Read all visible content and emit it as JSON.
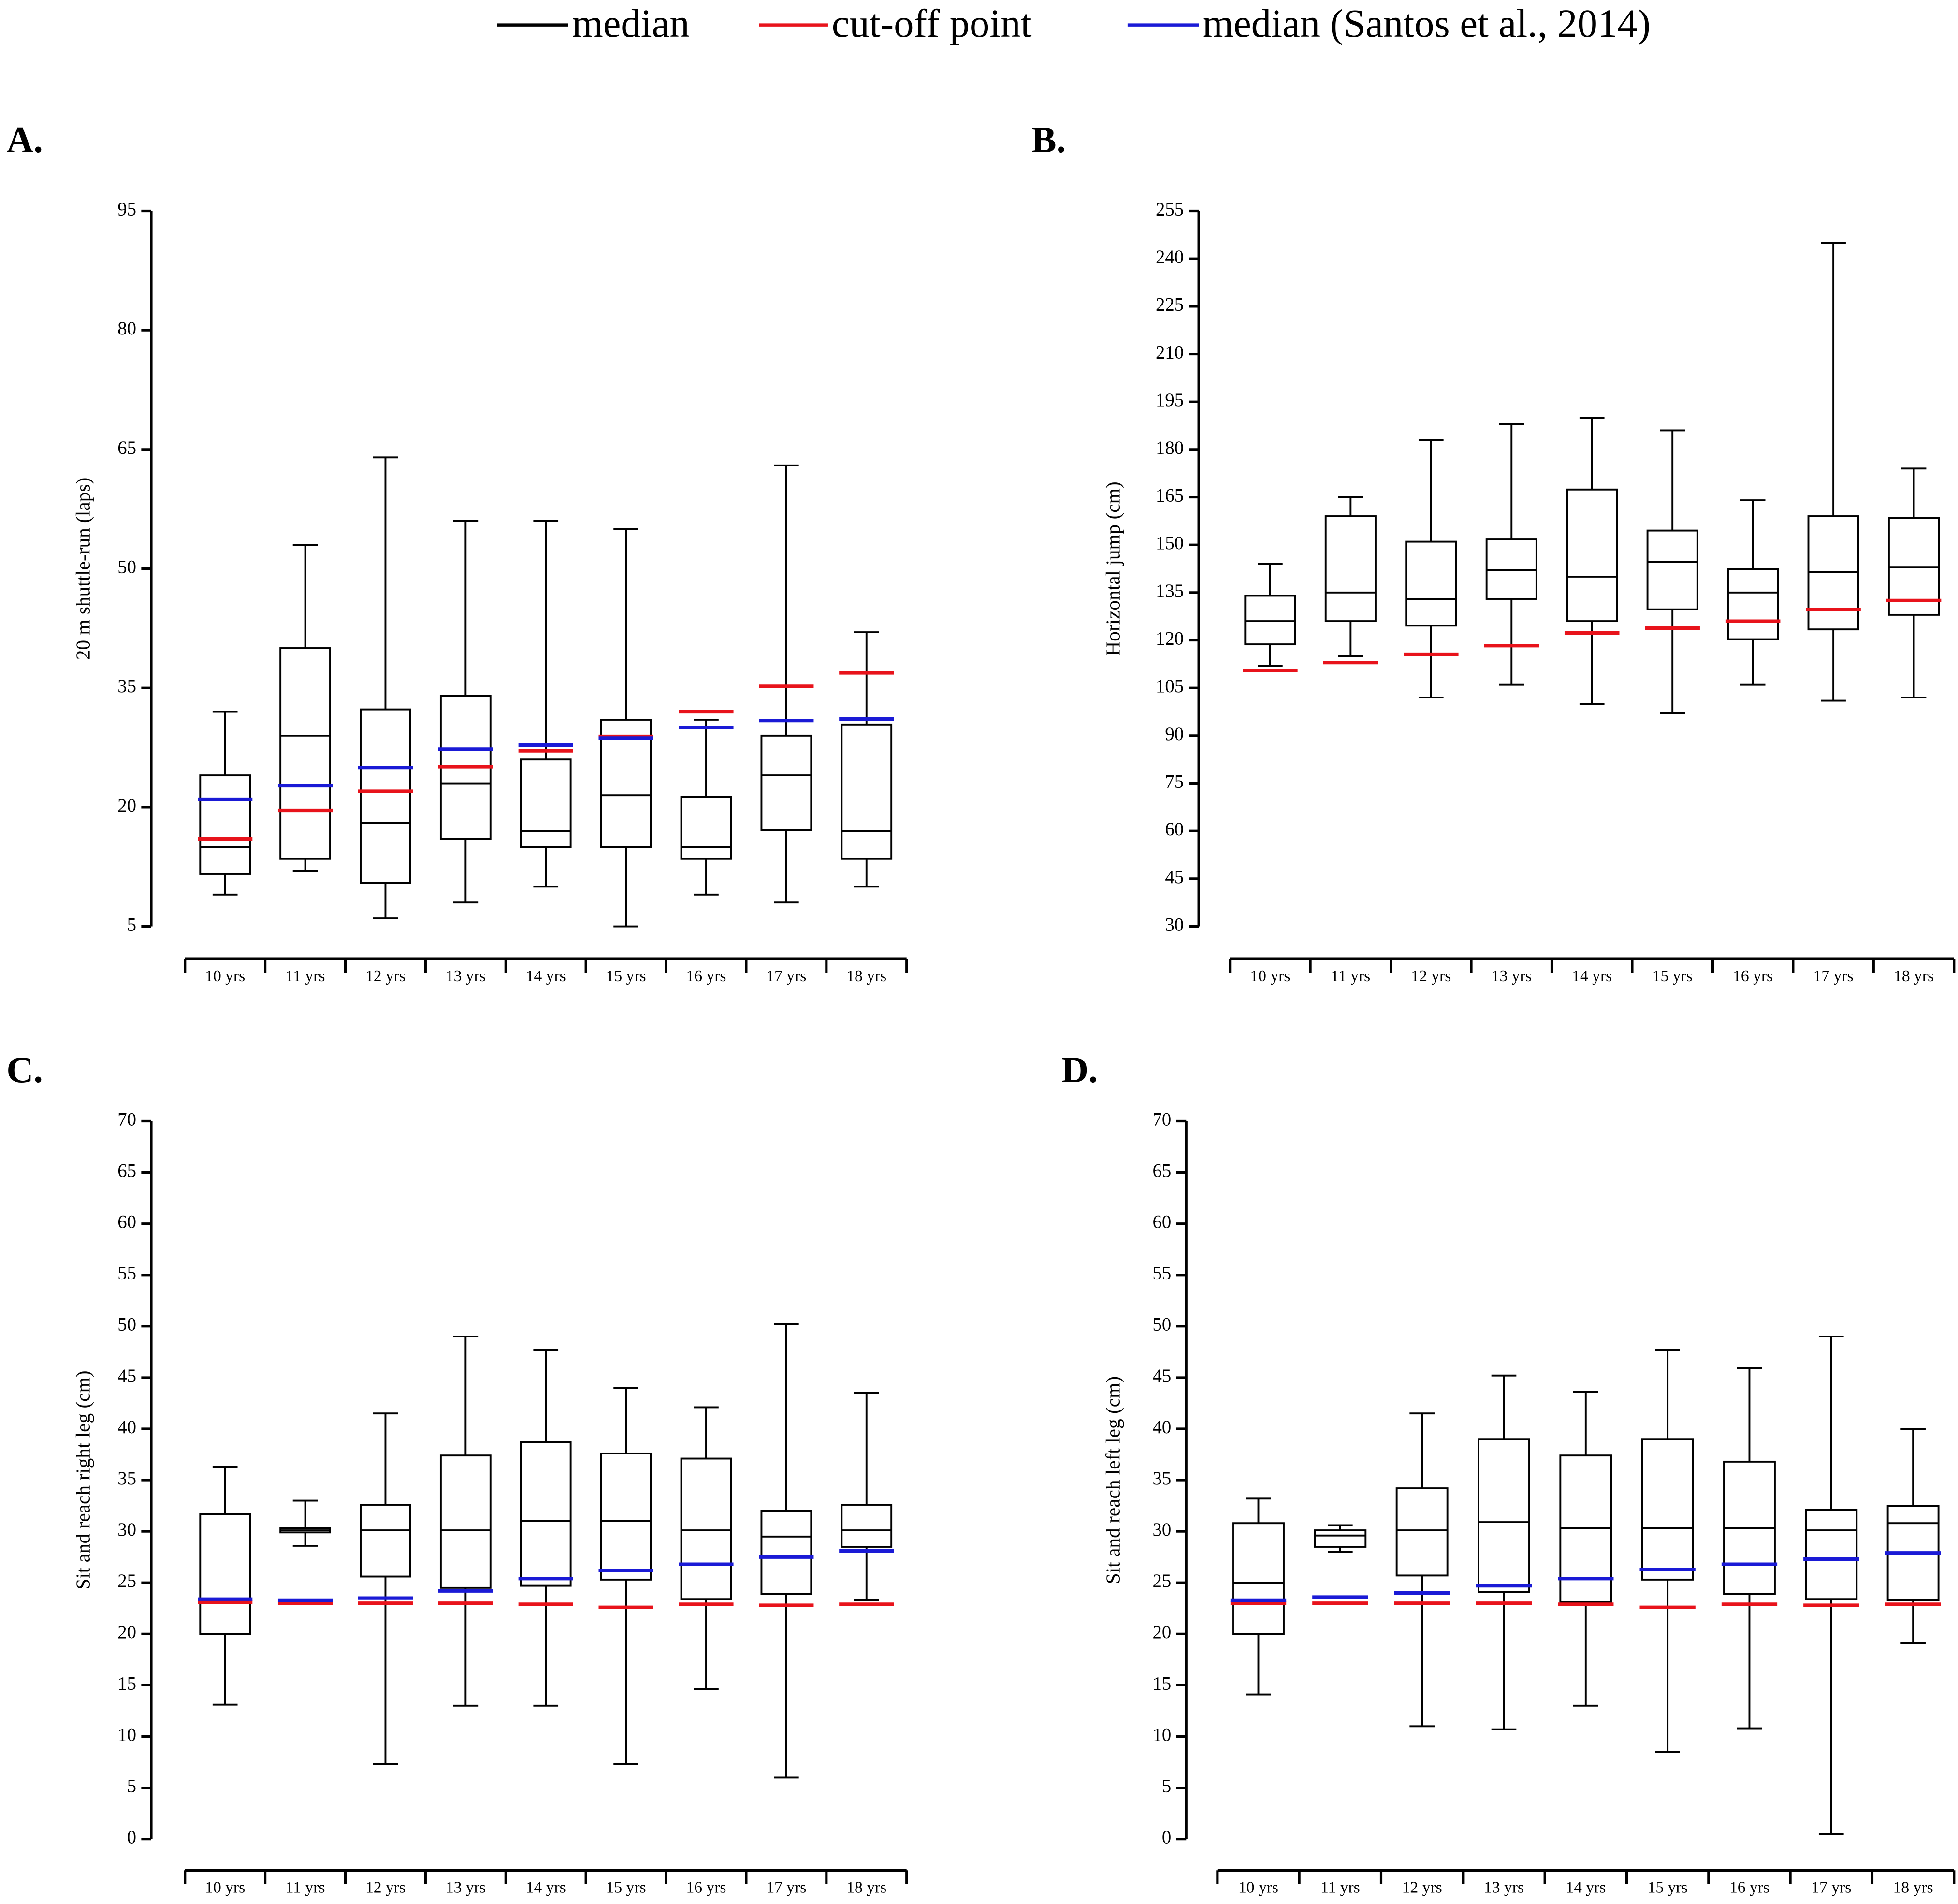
{
  "legend": [
    {
      "name": "median",
      "color": "#000000"
    },
    {
      "name": "cut-off point",
      "color": "#e8131b"
    },
    {
      "name": "median (Santos et al., 2014)",
      "color": "#1a1ad6"
    }
  ],
  "chart_data": [
    {
      "type": "box",
      "label": "A.",
      "y_label": "20 m shuttle-run (laps)",
      "categories": [
        "10 yrs",
        "11 yrs",
        "12 yrs",
        "13 yrs",
        "14 yrs",
        "15 yrs",
        "16 yrs",
        "17 yrs",
        "18 yrs"
      ],
      "ylim": [
        5,
        95
      ],
      "yticks": [
        5,
        20,
        35,
        50,
        65,
        80,
        95
      ],
      "boxes": {
        "min": [
          9,
          12,
          6,
          8,
          10,
          5,
          9,
          8,
          10
        ],
        "q1": [
          11.6,
          13.5,
          10.5,
          16,
          15,
          15,
          13.5,
          17.1,
          13.5
        ],
        "median": [
          15,
          29,
          18,
          23,
          17,
          21.5,
          15,
          24,
          17
        ],
        "q3": [
          24,
          40,
          32.3,
          34,
          26,
          31,
          21.3,
          29,
          30.4
        ],
        "max": [
          32,
          53,
          64,
          56,
          56,
          55,
          31,
          63,
          42
        ]
      },
      "cutoff": [
        16,
        19.6,
        22,
        25.1,
        27.1,
        28.9,
        32,
        35.2,
        36.9
      ],
      "reference_median": [
        21,
        22.7,
        25,
        27.3,
        27.8,
        28.7,
        30,
        30.9,
        31.1
      ]
    },
    {
      "type": "box",
      "label": "B.",
      "y_label": "Horizontal jump (cm)",
      "categories": [
        "10 yrs",
        "11 yrs",
        "12 yrs",
        "13 yrs",
        "14 yrs",
        "15 yrs",
        "16 yrs",
        "17 yrs",
        "18 yrs"
      ],
      "ylim": [
        30,
        255
      ],
      "yticks": [
        30,
        45,
        60,
        75,
        90,
        105,
        120,
        135,
        150,
        165,
        180,
        195,
        210,
        225,
        240,
        255
      ],
      "boxes": {
        "min": [
          112,
          115,
          102,
          106,
          100,
          97,
          106,
          101,
          102
        ],
        "q1": [
          118.7,
          126,
          124.6,
          133,
          126,
          129.7,
          120.3,
          123.4,
          128
        ],
        "median": [
          126,
          135,
          133,
          142,
          140,
          144.6,
          135,
          141.5,
          143
        ],
        "q3": [
          134,
          159,
          151,
          151.7,
          167.4,
          154.5,
          142.3,
          159,
          158.4
        ],
        "max": [
          144,
          165,
          183,
          188,
          190,
          186,
          164,
          245,
          174
        ]
      },
      "cutoff": [
        110.5,
        113,
        115.6,
        118.3,
        122.3,
        123.8,
        126,
        129.7,
        132.5
      ]
    },
    {
      "type": "box",
      "label": "C.",
      "y_label": "Sit and reach right leg (cm)",
      "categories": [
        "10 yrs",
        "11 yrs",
        "12 yrs",
        "13 yrs",
        "14 yrs",
        "15 yrs",
        "16 yrs",
        "17 yrs",
        "18 yrs"
      ],
      "ylim": [
        0,
        70
      ],
      "yticks": [
        0,
        5,
        10,
        15,
        20,
        25,
        30,
        35,
        40,
        45,
        50,
        55,
        60,
        65,
        70
      ],
      "boxes": {
        "min": [
          13.1,
          28.6,
          7.3,
          13,
          13,
          7.3,
          14.6,
          6,
          23.3
        ],
        "q1": [
          20,
          29.9,
          25.6,
          24.5,
          24.7,
          25.3,
          23.4,
          23.9,
          28.5
        ],
        "median": [
          23.3,
          30.1,
          30.1,
          30.1,
          31,
          31,
          30.1,
          29.5,
          30.1
        ],
        "q3": [
          31.7,
          30.3,
          32.6,
          37.4,
          38.7,
          37.6,
          37.1,
          32,
          32.6
        ],
        "max": [
          36.3,
          33,
          41.5,
          49,
          47.7,
          44,
          42.1,
          50.2,
          43.5
        ]
      },
      "cutoff": [
        23.1,
        23,
        23,
        23,
        22.9,
        22.6,
        22.9,
        22.8,
        22.9
      ],
      "reference_median": [
        23.4,
        23.3,
        23.5,
        24.2,
        25.4,
        26.2,
        26.8,
        27.5,
        28.1
      ]
    },
    {
      "type": "box",
      "label": "D.",
      "y_label": "Sit and reach left leg (cm)",
      "categories": [
        "10 yrs",
        "11 yrs",
        "12 yrs",
        "13 yrs",
        "14 yrs",
        "15 yrs",
        "16 yrs",
        "17 yrs",
        "18 yrs"
      ],
      "ylim": [
        0,
        70
      ],
      "yticks": [
        0,
        5,
        10,
        15,
        20,
        25,
        30,
        35,
        40,
        45,
        50,
        55,
        60,
        65,
        70
      ],
      "boxes": {
        "min": [
          14.1,
          28,
          11,
          10.7,
          13,
          8.5,
          10.8,
          0.5,
          19.1
        ],
        "q1": [
          20,
          28.5,
          25.7,
          24.1,
          23.1,
          25.3,
          23.9,
          23.4,
          23.3
        ],
        "median": [
          25,
          29.6,
          30.1,
          30.9,
          30.3,
          30.3,
          30.3,
          30.1,
          30.8
        ],
        "q3": [
          30.8,
          30.1,
          34.2,
          39,
          37.4,
          39,
          36.8,
          32.1,
          32.5
        ],
        "max": [
          33.2,
          30.6,
          41.5,
          45.2,
          43.6,
          47.7,
          45.9,
          49,
          40
        ]
      },
      "cutoff": [
        23,
        23,
        23,
        23,
        22.9,
        22.6,
        22.9,
        22.8,
        22.9
      ],
      "reference_median": [
        23.3,
        23.6,
        24,
        24.7,
        25.4,
        26.3,
        26.8,
        27.3,
        27.9
      ]
    }
  ]
}
